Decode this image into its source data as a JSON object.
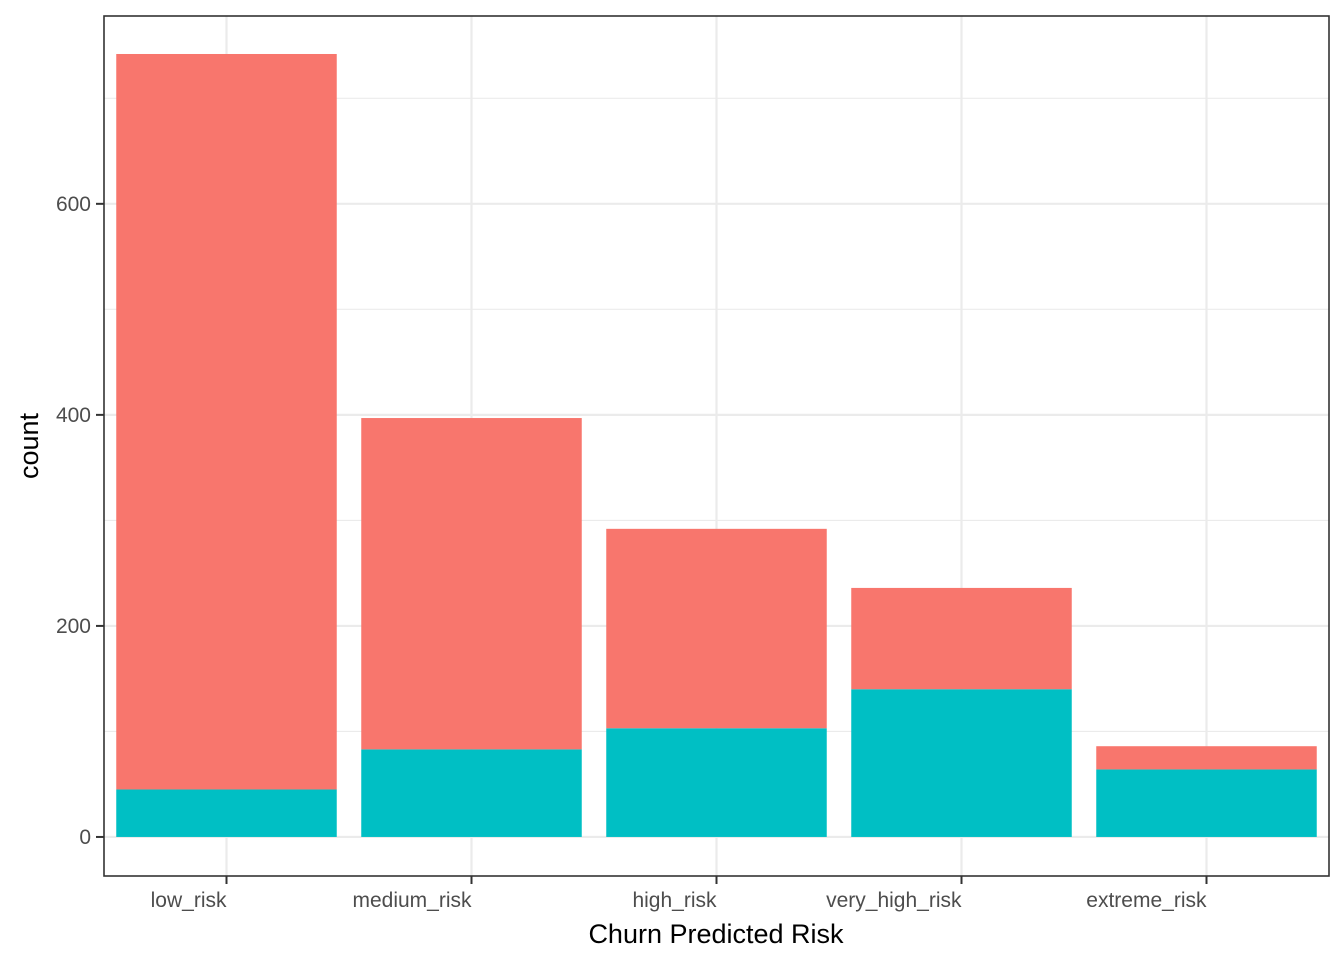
{
  "chart_data": {
    "type": "bar",
    "stacked": true,
    "title": "",
    "xlabel": "Churn Predicted Risk",
    "ylabel": "count",
    "categories": [
      "low_risk",
      "medium_risk",
      "high_risk",
      "very_high_risk",
      "extreme_risk"
    ],
    "series": [
      {
        "values": [
          45,
          83,
          103,
          140,
          64
        ],
        "color": "#00BFC4"
      },
      {
        "values": [
          697,
          314,
          189,
          96,
          22
        ],
        "color": "#F8766D"
      }
    ],
    "yticks": [
      0,
      200,
      400,
      600
    ],
    "ylim": [
      -37,
      778
    ],
    "grid": true,
    "legend": "none"
  }
}
